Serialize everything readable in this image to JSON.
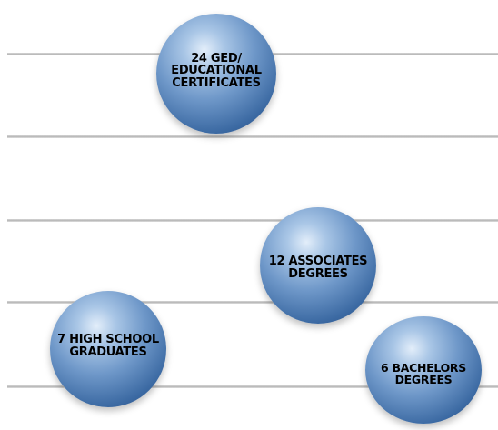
{
  "items": [
    {
      "count": "24",
      "text": "24 GED/\nEDUCATIONAL\nCERTIFICATES"
    },
    {
      "count": "12",
      "text": "12 ASSOCIATES\nDEGREES"
    },
    {
      "count": "7",
      "text": "7 HIGH SCHOOL\nGRADUATES"
    },
    {
      "count": "6",
      "text": "6 BACHELORS\nDEGREES"
    }
  ],
  "colors": {
    "sphere_base": "#3c6aa3",
    "sphere_highlight": "#e3eefa",
    "rule": "#b4b4b4",
    "text": "#000000"
  }
}
